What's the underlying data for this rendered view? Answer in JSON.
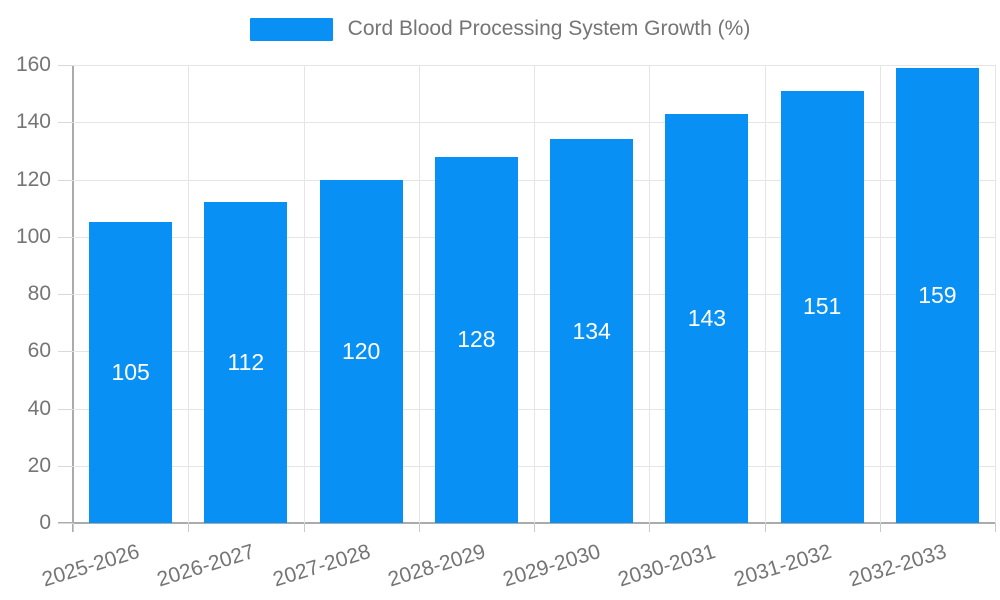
{
  "legend": {
    "label": "Cord Blood Processing System Growth (%)"
  },
  "chart_data": {
    "type": "bar",
    "title": "Cord Blood Processing System Growth (%)",
    "series_name": "Cord Blood Processing System Growth (%)",
    "categories": [
      "2025-2026",
      "2026-2027",
      "2027-2028",
      "2028-2029",
      "2029-2030",
      "2030-2031",
      "2031-2032",
      "2032-2033"
    ],
    "values": [
      105,
      112,
      120,
      128,
      134,
      143,
      151,
      159
    ],
    "value_labels": [
      "105",
      "112",
      "120",
      "128",
      "134",
      "143",
      "151",
      "159"
    ],
    "yticks": [
      0,
      20,
      40,
      60,
      80,
      100,
      120,
      140,
      160
    ],
    "ytick_labels": [
      "0",
      "20",
      "40",
      "60",
      "80",
      "100",
      "120",
      "140",
      "160"
    ],
    "ylim": [
      0,
      160
    ],
    "xlabel": "",
    "ylabel": "",
    "grid": true,
    "legend_position": "top-center",
    "bar_color": "#0890F5",
    "bar_value_label_color": "#ffffff",
    "axis_text_color": "#757575",
    "gridline_color": "#e5e5e5",
    "axis_line_color": "#ababab",
    "background_color": "#ffffff"
  }
}
